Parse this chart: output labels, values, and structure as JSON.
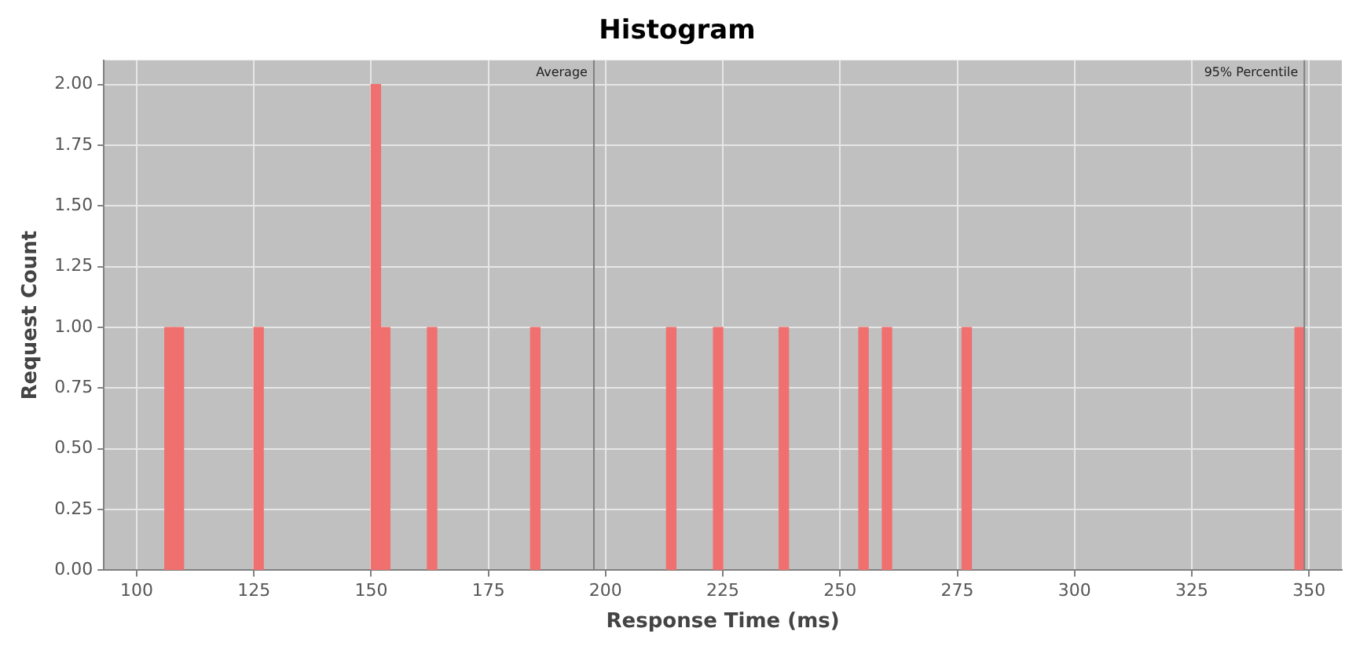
{
  "chart_data": {
    "type": "bar",
    "title": "Histogram",
    "xlabel": "Response Time (ms)",
    "ylabel": "Request Count",
    "x": [
      107,
      109,
      126,
      151,
      153,
      163,
      185,
      214,
      224,
      238,
      255,
      260,
      277,
      348
    ],
    "values": [
      1,
      1,
      1,
      2,
      1,
      1,
      1,
      1,
      1,
      1,
      1,
      1,
      1,
      1
    ],
    "color": "#f07070",
    "xlim": [
      93,
      357
    ],
    "xticks": [
      100,
      125,
      150,
      175,
      200,
      225,
      250,
      275,
      300,
      325,
      350
    ],
    "ylim": [
      0,
      2.1
    ],
    "yticks": [
      {
        "value": 0,
        "label": "0.00"
      },
      {
        "value": 0.25,
        "label": "0.25"
      },
      {
        "value": 0.5,
        "label": "0.50"
      },
      {
        "value": 0.75,
        "label": "0.75"
      },
      {
        "value": 1,
        "label": "1.00"
      },
      {
        "value": 1.25,
        "label": "1.25"
      },
      {
        "value": 1.5,
        "label": "1.50"
      },
      {
        "value": 1.75,
        "label": "1.75"
      },
      {
        "value": 2,
        "label": "2.00"
      }
    ],
    "ref_lines": [
      {
        "axis": "x",
        "value": 197.5,
        "label": "Average",
        "color": "#808080"
      },
      {
        "axis": "x",
        "value": 349,
        "label": "95% Percentile",
        "color": "#808080"
      }
    ],
    "grid": true,
    "legend": false
  }
}
